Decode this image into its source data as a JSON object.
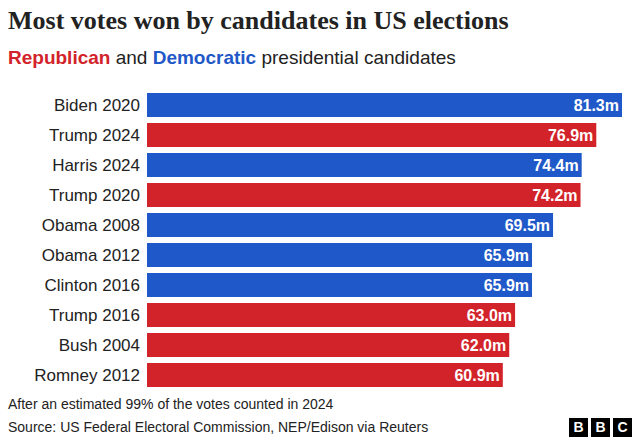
{
  "chart_data": {
    "type": "bar",
    "orientation": "horizontal",
    "title": "Most votes won by candidates in US elections",
    "subtitle": "Republican and Democratic presidential candidates",
    "categories": [
      "Biden 2020",
      "Trump 2024",
      "Harris 2024",
      "Trump 2020",
      "Obama 2008",
      "Obama 2012",
      "Clinton 2016",
      "Trump 2016",
      "Bush 2004",
      "Romney 2012"
    ],
    "series": [
      {
        "name": "Republican",
        "color": "#d3232a",
        "values": [
          null,
          76.9,
          null,
          74.2,
          null,
          null,
          null,
          63.0,
          62.0,
          60.9
        ],
        "value_labels": [
          null,
          "76.9m",
          null,
          "74.2m",
          null,
          null,
          null,
          "63.0m",
          "62.0m",
          "60.9m"
        ]
      },
      {
        "name": "Democratic",
        "color": "#1f58c8",
        "values": [
          81.3,
          null,
          74.4,
          null,
          69.5,
          65.9,
          65.9,
          null,
          null,
          null
        ],
        "value_labels": [
          "81.3m",
          null,
          "74.4m",
          null,
          "69.5m",
          "65.9m",
          "65.9m",
          null,
          null,
          null
        ]
      }
    ],
    "xlim": [
      0,
      81.3
    ],
    "data_labels": true,
    "tick_labels": "y",
    "grid": false,
    "note": "After an estimated 99% of the votes counted in 2024",
    "source": "Source: US Federal Electoral Commission, NEP/Edison via Reuters",
    "logo": "BBC"
  }
}
